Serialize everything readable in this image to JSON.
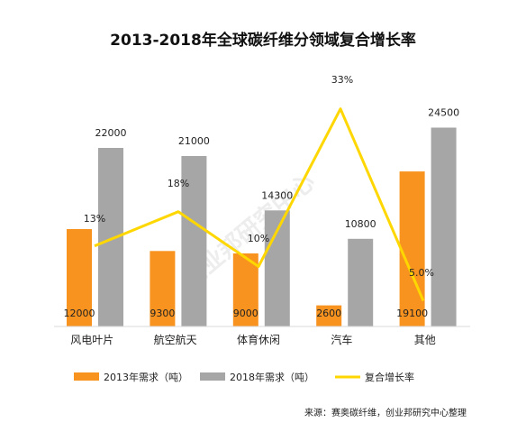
{
  "chart_data": {
    "type": "bar",
    "title": "2013-2018年全球碳纤维分领域复合增长率",
    "categories": [
      "风电叶片",
      "航空航天",
      "体育休闲",
      "汽车",
      "其他"
    ],
    "series": [
      {
        "name": "2013年需求（吨）",
        "kind": "bar",
        "color": "#F7931E",
        "values": [
          12000,
          9300,
          9000,
          2600,
          19100
        ]
      },
      {
        "name": "2018年需求（吨）",
        "kind": "bar",
        "color": "#A6A6A6",
        "values": [
          22000,
          21000,
          14300,
          10800,
          24500
        ]
      },
      {
        "name": "复合增长率",
        "kind": "line",
        "color": "#FFD700",
        "values": [
          13,
          18,
          10,
          33,
          5.0
        ]
      }
    ],
    "bar_value_labels": [
      [
        "12000",
        "9300",
        "9000",
        "2600",
        "19100"
      ],
      [
        "22000",
        "21000",
        "14300",
        "10800",
        "24500"
      ]
    ],
    "line_value_labels": [
      "13%",
      "18%",
      "10%",
      "33%",
      "5.0%"
    ],
    "ylim": [
      0,
      30000
    ],
    "y2lim": [
      0,
      35
    ],
    "grid": false,
    "legend_position": "bottom",
    "source": "来源：赛奥碳纤维，创业邦研究中心整理",
    "watermark": "创业邦研究中心"
  }
}
